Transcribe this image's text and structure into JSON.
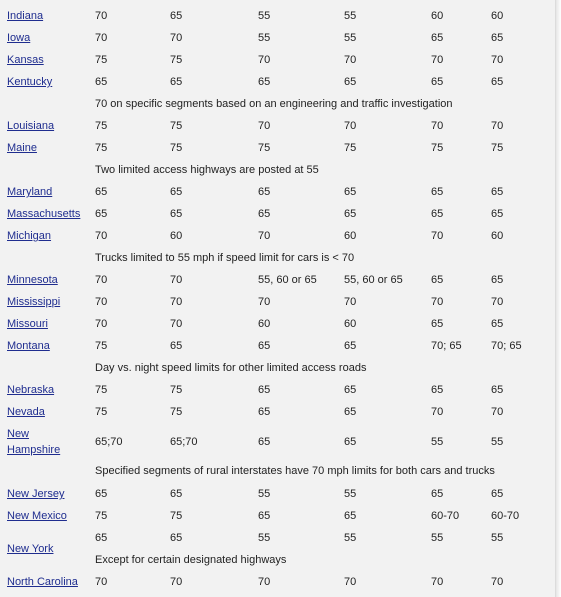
{
  "colors": {
    "link": "#1f2d8f",
    "text": "#222222",
    "background": "#f2f2f2"
  },
  "rows": [
    {
      "state": "Indiana",
      "values": [
        "70",
        "65",
        "55",
        "55",
        "60",
        "60"
      ]
    },
    {
      "state": "Iowa",
      "values": [
        "70",
        "70",
        "55",
        "55",
        "65",
        "65"
      ]
    },
    {
      "state": "Kansas",
      "values": [
        "75",
        "75",
        "70",
        "70",
        "70",
        "70"
      ]
    },
    {
      "state": "Kentucky",
      "values": [
        "65",
        "65",
        "65",
        "65",
        "65",
        "65"
      ]
    },
    {
      "note": "70 on specific segments based on an engineering and traffic investigation"
    },
    {
      "state": "Louisiana",
      "values": [
        "75",
        "75",
        "70",
        "70",
        "70",
        "70"
      ]
    },
    {
      "state": "Maine",
      "values": [
        "75",
        "75",
        "75",
        "75",
        "75",
        "75"
      ]
    },
    {
      "note": "Two limited access highways are posted at 55"
    },
    {
      "state": "Maryland",
      "values": [
        "65",
        "65",
        "65",
        "65",
        "65",
        "65"
      ]
    },
    {
      "state": "Massachusetts",
      "values": [
        "65",
        "65",
        "65",
        "65",
        "65",
        "65"
      ]
    },
    {
      "state": "Michigan",
      "values": [
        "70",
        "60",
        "70",
        "60",
        "70",
        "60"
      ]
    },
    {
      "note": "Trucks limited to 55 mph if speed limit for cars is < 70"
    },
    {
      "state": "Minnesota",
      "values": [
        "70",
        "70",
        "55, 60 or 65",
        "55, 60 or 65",
        "65",
        "65"
      ]
    },
    {
      "state": "Mississippi",
      "values": [
        "70",
        "70",
        "70",
        "70",
        "70",
        "70"
      ]
    },
    {
      "state": "Missouri",
      "values": [
        "70",
        "70",
        "60",
        "60",
        "65",
        "65"
      ]
    },
    {
      "state": "Montana",
      "values": [
        "75",
        "65",
        "65",
        "65",
        "70; 65",
        "70; 65"
      ]
    },
    {
      "note": "Day vs. night speed limits for other limited access roads"
    },
    {
      "state": "Nebraska",
      "values": [
        "75",
        "75",
        "65",
        "65",
        "65",
        "65"
      ]
    },
    {
      "state": "Nevada",
      "values": [
        "75",
        "75",
        "65",
        "65",
        "70",
        "70"
      ]
    },
    {
      "state_lines": [
        "New",
        "Hampshire"
      ],
      "values": [
        "65;70",
        "65;70",
        "65",
        "65",
        "55",
        "55"
      ]
    },
    {
      "note": "Specified segments of rural interstates have 70 mph limits for both cars and trucks"
    },
    {
      "state": "New Jersey",
      "values": [
        "65",
        "65",
        "55",
        "55",
        "65",
        "65"
      ]
    },
    {
      "state": "New Mexico",
      "values": [
        "75",
        "75",
        "65",
        "65",
        "60-70",
        "60-70"
      ]
    },
    {
      "state": "New York",
      "values": [
        "65",
        "65",
        "55",
        "55",
        "55",
        "55"
      ],
      "note": "Except for certain designated highways"
    },
    {
      "state": "North Carolina",
      "values": [
        "70",
        "70",
        "70",
        "70",
        "70",
        "70"
      ]
    }
  ]
}
